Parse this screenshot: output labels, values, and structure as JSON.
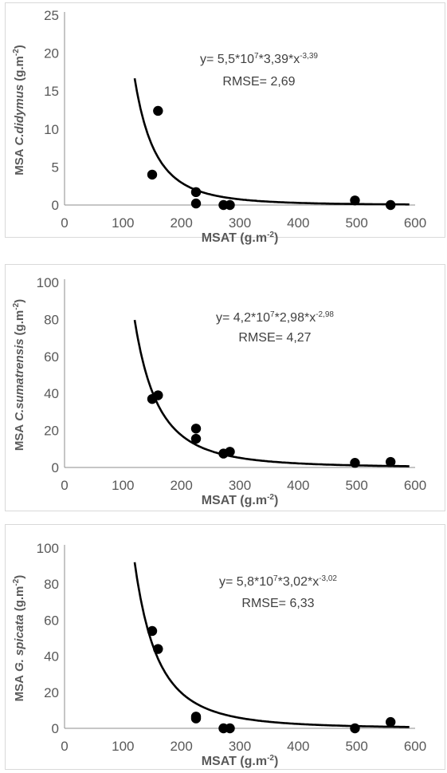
{
  "chart_data": [
    {
      "type": "scatter",
      "ylabel_prefix": "MSA",
      "ylabel_species": "C.didymus",
      "ylabel_unit": "(g.m",
      "ylabel_exp": "-2",
      "ylabel_close": ")",
      "xlabel": "MSAT (g.m",
      "xlabel_exp": "-2",
      "xlabel_close": ")",
      "xlim": [
        0,
        600
      ],
      "ylim": [
        0,
        25
      ],
      "xticks": [
        "0",
        "100",
        "200",
        "300",
        "400",
        "500",
        "600"
      ],
      "yticks": [
        "0",
        "5",
        "10",
        "15",
        "20",
        "25"
      ],
      "equation": {
        "a": "y= 5,5*10",
        "a_exp": "7",
        "b": "*3,39*x",
        "b_exp": "-3,39"
      },
      "rmse": "RMSE= 2,69",
      "fit": {
        "a": 55000000.0,
        "b": 3.39,
        "k": 3.39,
        "x_start": 120,
        "x_end": 590
      },
      "points": [
        {
          "x": 150,
          "y": 4.0
        },
        {
          "x": 160,
          "y": 12.4
        },
        {
          "x": 225,
          "y": 1.7
        },
        {
          "x": 225,
          "y": 0.2
        },
        {
          "x": 272,
          "y": 0.0
        },
        {
          "x": 283,
          "y": 0.0
        },
        {
          "x": 497,
          "y": 0.6
        },
        {
          "x": 558,
          "y": 0.0
        }
      ]
    },
    {
      "type": "scatter",
      "ylabel_prefix": "MSA",
      "ylabel_species": "C.sumatrensis",
      "ylabel_unit": "(g.m",
      "ylabel_exp": "-2",
      "ylabel_close": ")",
      "xlabel": "MSAT (g.m",
      "xlabel_exp": "-2",
      "xlabel_close": ")",
      "xlim": [
        0,
        600
      ],
      "ylim": [
        0,
        100
      ],
      "xticks": [
        "0",
        "100",
        "200",
        "300",
        "400",
        "500",
        "600"
      ],
      "yticks": [
        "0",
        "20",
        "40",
        "60",
        "80",
        "100"
      ],
      "equation": {
        "a": "y= 4,2*10",
        "a_exp": "7",
        "b": "*2,98*x",
        "b_exp": "-2,98"
      },
      "rmse": "RMSE= 4,27",
      "fit": {
        "a": 42000000.0,
        "b": 2.98,
        "k": 2.98,
        "x_start": 120,
        "x_end": 590
      },
      "points": [
        {
          "x": 150,
          "y": 37
        },
        {
          "x": 160,
          "y": 39
        },
        {
          "x": 225,
          "y": 21
        },
        {
          "x": 225,
          "y": 15.5
        },
        {
          "x": 272,
          "y": 7.5
        },
        {
          "x": 283,
          "y": 8.5
        },
        {
          "x": 497,
          "y": 2.5
        },
        {
          "x": 558,
          "y": 3.0
        }
      ]
    },
    {
      "type": "scatter",
      "ylabel_prefix": "MSA",
      "ylabel_species": "G. spicata",
      "ylabel_unit": "(g.m",
      "ylabel_exp": "-2",
      "ylabel_close": ")",
      "xlabel": "MSAT (g.m",
      "xlabel_exp": "-2",
      "xlabel_close": ")",
      "xlim": [
        0,
        600
      ],
      "ylim": [
        0,
        100
      ],
      "xticks": [
        "0",
        "100",
        "200",
        "300",
        "400",
        "500",
        "600"
      ],
      "yticks": [
        "0",
        "20",
        "40",
        "60",
        "80",
        "100"
      ],
      "equation": {
        "a": "y= 5,8*10",
        "a_exp": "7",
        "b": "*3,02*x",
        "b_exp": "-3,02"
      },
      "rmse": "RMSE= 6,33",
      "fit": {
        "a": 58000000.0,
        "b": 3.02,
        "k": 3.02,
        "x_start": 120,
        "x_end": 590
      },
      "points": [
        {
          "x": 150,
          "y": 54
        },
        {
          "x": 160,
          "y": 44
        },
        {
          "x": 225,
          "y": 6.5
        },
        {
          "x": 225,
          "y": 5.5
        },
        {
          "x": 272,
          "y": 0.0
        },
        {
          "x": 283,
          "y": 0.0
        },
        {
          "x": 497,
          "y": 0.0
        },
        {
          "x": 558,
          "y": 3.5
        }
      ]
    }
  ]
}
